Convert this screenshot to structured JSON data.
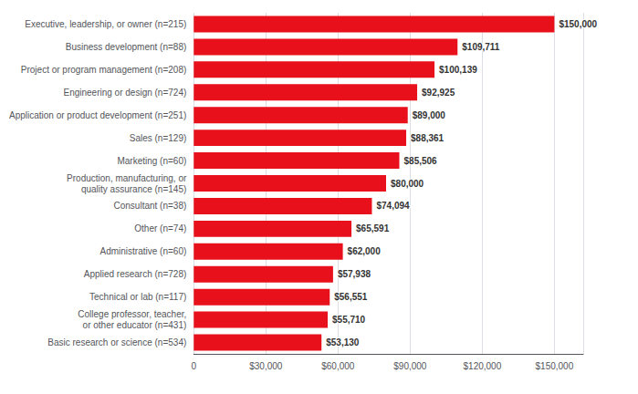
{
  "chart_data": {
    "type": "bar",
    "orientation": "horizontal",
    "categories": [
      "Basic research or science (n=534)",
      "College professor, teacher,\nor other educator (n=431)",
      "Technical or lab (n=117)",
      "Applied research (n=728)",
      "Administrative (n=60)",
      "Other (n=74)",
      "Consultant (n=38)",
      "Production, manufacturing, or\nquality assurance (n=145)",
      "Marketing (n=60)",
      "Sales (n=129)",
      "Application or product development (n=251)",
      "Engineering or design (n=724)",
      "Project or program management (n=208)",
      "Business development (n=88)",
      "Executive, leadership, or owner (n=215)"
    ],
    "values": [
      53130,
      55710,
      56551,
      57938,
      62000,
      65591,
      74094,
      80000,
      85506,
      88361,
      89000,
      92925,
      100139,
      109711,
      150000
    ],
    "value_labels": [
      "$53,130",
      "$55,710",
      "$56,551",
      "$57,938",
      "$62,000",
      "$65,591",
      "$74,094",
      "$80,000",
      "$85,506",
      "$88,361",
      "$89,000",
      "$92,925",
      "$100,139",
      "$109,711",
      "$150,000"
    ],
    "data_labels": true,
    "color": "#e8101a",
    "xlim": [
      0,
      162000
    ],
    "xticks": [
      0,
      {
        "value": 30000,
        "label": "$30,000"
      },
      {
        "value": 60000,
        "label": "$60,000"
      },
      {
        "value": 90000,
        "label": "$90,000"
      },
      {
        "value": 120000,
        "label": "$120,000"
      },
      {
        "value": 150000,
        "label": "$150,000"
      }
    ],
    "grid": true
  }
}
